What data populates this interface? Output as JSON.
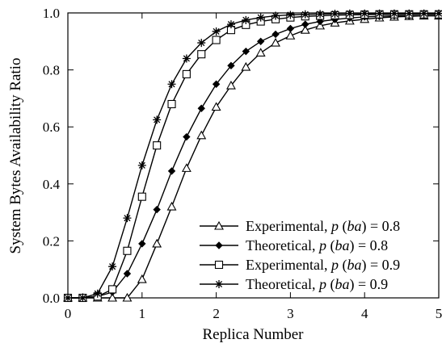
{
  "chart_data": {
    "type": "line",
    "xlabel": "Replica Number",
    "ylabel": "System Bytes Availability Ratio",
    "xlim": [
      0,
      5
    ],
    "ylim": [
      0,
      1.0
    ],
    "xticks": [
      "0",
      "1",
      "2",
      "3",
      "4",
      "5"
    ],
    "yticks": [
      "0.0",
      "0.2",
      "0.4",
      "0.6",
      "0.8",
      "1.0"
    ],
    "grid": false,
    "legend_position": "bottom-right",
    "series": [
      {
        "name": "Experimental, p (ba) = 0.8",
        "legend": {
          "prefix": "Experimental, ",
          "p": "p",
          "ba": "ba",
          "suffix": " = 0.8"
        },
        "marker": "triangle",
        "x": [
          0,
          0.2,
          0.4,
          0.6,
          0.8,
          1.0,
          1.2,
          1.4,
          1.6,
          1.8,
          2.0,
          2.2,
          2.4,
          2.6,
          2.8,
          3.0,
          3.2,
          3.4,
          3.6,
          3.8,
          4.0,
          4.2,
          4.4,
          4.6,
          4.8,
          5.0
        ],
        "y": [
          0,
          0,
          0,
          0,
          0,
          0.065,
          0.19,
          0.32,
          0.455,
          0.57,
          0.67,
          0.745,
          0.81,
          0.86,
          0.895,
          0.92,
          0.94,
          0.955,
          0.965,
          0.972,
          0.978,
          0.983,
          0.986,
          0.988,
          0.99,
          0.99
        ]
      },
      {
        "name": "Theoretical, p (ba) = 0.8",
        "legend": {
          "prefix": "Theoretical, ",
          "p": "p",
          "ba": "ba",
          "suffix": " = 0.8"
        },
        "marker": "diamond",
        "x": [
          0,
          0.2,
          0.4,
          0.6,
          0.8,
          1.0,
          1.2,
          1.4,
          1.6,
          1.8,
          2.0,
          2.2,
          2.4,
          2.6,
          2.8,
          3.0,
          3.2,
          3.4,
          3.6,
          3.8,
          4.0,
          4.2,
          4.4,
          4.6,
          4.8,
          5.0
        ],
        "y": [
          0,
          0,
          0.005,
          0.02,
          0.085,
          0.19,
          0.31,
          0.445,
          0.565,
          0.665,
          0.75,
          0.815,
          0.865,
          0.9,
          0.925,
          0.945,
          0.96,
          0.97,
          0.977,
          0.982,
          0.986,
          0.988,
          0.99,
          0.99,
          0.99,
          0.99
        ]
      },
      {
        "name": "Experimental, p (ba) = 0.9",
        "legend": {
          "prefix": "Experimental, ",
          "p": "p",
          "ba": "ba",
          "suffix": " = 0.9"
        },
        "marker": "square",
        "x": [
          0,
          0.2,
          0.4,
          0.6,
          0.8,
          1.0,
          1.2,
          1.4,
          1.6,
          1.8,
          2.0,
          2.2,
          2.4,
          2.6,
          2.8,
          3.0,
          3.2,
          3.4,
          3.6,
          3.8,
          4.0,
          4.2,
          4.4,
          4.6,
          4.8,
          5.0
        ],
        "y": [
          0,
          0,
          0.005,
          0.03,
          0.165,
          0.355,
          0.535,
          0.68,
          0.785,
          0.855,
          0.905,
          0.94,
          0.958,
          0.97,
          0.978,
          0.984,
          0.988,
          0.99,
          0.992,
          0.993,
          0.994,
          0.995,
          0.995,
          0.995,
          0.995,
          0.995
        ]
      },
      {
        "name": "Theoretical, p (ba) = 0.9",
        "legend": {
          "prefix": "Theoretical, ",
          "p": "p",
          "ba": "ba",
          "suffix": " = 0.9"
        },
        "marker": "star",
        "x": [
          0,
          0.2,
          0.4,
          0.6,
          0.8,
          1.0,
          1.2,
          1.4,
          1.6,
          1.8,
          2.0,
          2.2,
          2.4,
          2.6,
          2.8,
          3.0,
          3.2,
          3.4,
          3.6,
          3.8,
          4.0,
          4.2,
          4.4,
          4.6,
          4.8,
          5.0
        ],
        "y": [
          0,
          0,
          0.015,
          0.11,
          0.28,
          0.465,
          0.625,
          0.75,
          0.84,
          0.895,
          0.935,
          0.96,
          0.975,
          0.984,
          0.99,
          0.993,
          0.995,
          0.996,
          0.997,
          0.998,
          0.998,
          0.998,
          0.998,
          0.998,
          0.998,
          0.998
        ]
      }
    ]
  }
}
